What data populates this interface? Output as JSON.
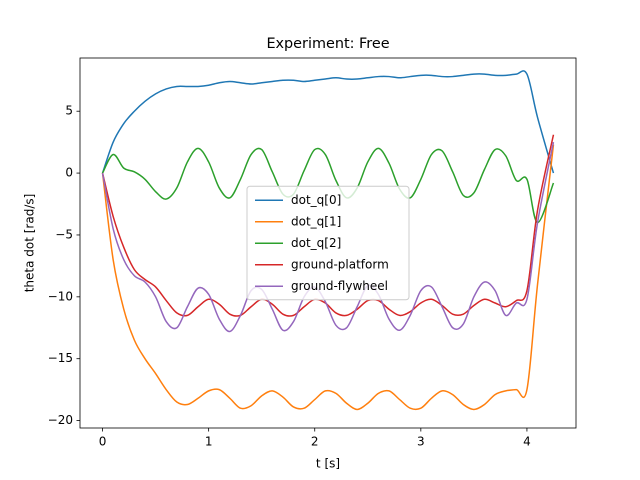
{
  "chart_data": {
    "type": "line",
    "title": "Experiment: Free",
    "xlabel": "t [s]",
    "ylabel": "theta dot [rad/s]",
    "x": [
      0,
      0.1,
      0.2,
      0.3,
      0.4,
      0.5,
      0.6,
      0.7,
      0.8,
      0.9,
      1.0,
      1.1,
      1.2,
      1.3,
      1.4,
      1.5,
      1.6,
      1.7,
      1.8,
      1.9,
      2.0,
      2.1,
      2.2,
      2.3,
      2.4,
      2.5,
      2.6,
      2.7,
      2.8,
      2.9,
      3.0,
      3.1,
      3.2,
      3.3,
      3.4,
      3.5,
      3.6,
      3.7,
      3.8,
      3.9,
      4.0,
      4.1,
      4.25
    ],
    "series": [
      {
        "name": "dot_q[0]",
        "color": "#1f77b4",
        "values": [
          0,
          2.5,
          4.0,
          5.0,
          5.8,
          6.4,
          6.8,
          7.0,
          7.0,
          7.0,
          7.1,
          7.3,
          7.4,
          7.3,
          7.2,
          7.3,
          7.4,
          7.5,
          7.5,
          7.4,
          7.5,
          7.6,
          7.7,
          7.6,
          7.6,
          7.7,
          7.8,
          7.8,
          7.7,
          7.8,
          7.9,
          7.9,
          7.8,
          7.8,
          7.9,
          8.0,
          8.0,
          7.9,
          7.9,
          8.0,
          8.0,
          4.5,
          0
        ]
      },
      {
        "name": "dot_q[1]",
        "color": "#ff7f0e",
        "values": [
          0,
          -7,
          -11,
          -13.5,
          -15,
          -16.2,
          -17.5,
          -18.5,
          -18.7,
          -18.2,
          -17.6,
          -17.5,
          -18.2,
          -19.0,
          -18.8,
          -18.0,
          -17.6,
          -18.1,
          -18.9,
          -19.0,
          -18.3,
          -17.6,
          -17.8,
          -18.6,
          -19.1,
          -18.6,
          -17.8,
          -17.6,
          -18.3,
          -19.0,
          -19.0,
          -18.2,
          -17.6,
          -17.9,
          -18.7,
          -19.1,
          -18.7,
          -17.9,
          -17.6,
          -17.5,
          -17.5,
          -9,
          2.3
        ]
      },
      {
        "name": "dot_q[2]",
        "color": "#2ca02c",
        "values": [
          0,
          1.5,
          0.4,
          0.1,
          -0.5,
          -1.5,
          -2.1,
          -1.2,
          0.9,
          2.0,
          0.9,
          -1.2,
          -2.0,
          -0.5,
          1.5,
          1.9,
          0.1,
          -1.7,
          -1.7,
          0.2,
          1.9,
          1.5,
          -0.6,
          -2.0,
          -1.2,
          0.9,
          2.0,
          0.8,
          -1.3,
          -2.0,
          -0.5,
          1.5,
          1.8,
          0.1,
          -1.8,
          -1.6,
          0.3,
          1.9,
          1.4,
          -0.6,
          -0.5,
          -4.0,
          -0.8
        ]
      },
      {
        "name": "ground-platform",
        "color": "#d62728",
        "values": [
          0,
          -3.5,
          -6,
          -7.8,
          -8.6,
          -9.2,
          -10.3,
          -11.3,
          -11.5,
          -10.8,
          -10.2,
          -10.6,
          -11.4,
          -11.5,
          -10.8,
          -10.2,
          -10.6,
          -11.4,
          -11.5,
          -10.8,
          -10.2,
          -10.5,
          -11.3,
          -11.5,
          -11.0,
          -10.3,
          -10.3,
          -11.0,
          -11.5,
          -11.2,
          -10.5,
          -10.2,
          -10.7,
          -11.4,
          -11.4,
          -10.7,
          -10.2,
          -10.5,
          -10.8,
          -10.3,
          -9.5,
          -3,
          3.1
        ]
      },
      {
        "name": "ground-flywheel",
        "color": "#9467bd",
        "values": [
          0,
          -4.5,
          -7,
          -8.3,
          -8.8,
          -10,
          -12,
          -12.5,
          -10.8,
          -9.3,
          -9.8,
          -11.8,
          -12.8,
          -11.5,
          -9.5,
          -9.4,
          -11.0,
          -12.7,
          -12.0,
          -10.0,
          -9.2,
          -10.4,
          -12.3,
          -12.5,
          -10.8,
          -9.1,
          -9.8,
          -11.8,
          -12.7,
          -11.5,
          -9.5,
          -9.2,
          -10.8,
          -12.5,
          -12.2,
          -10.0,
          -8.8,
          -9.5,
          -11.5,
          -10.5,
          -10.2,
          -4,
          2.5
        ]
      }
    ],
    "xlim": [
      -0.2125,
      4.4625
    ],
    "xticks": [
      0,
      1,
      2,
      3,
      4
    ],
    "ylim": [
      -20.6,
      9.3
    ],
    "yticks": [
      {
        "value": -20,
        "label": "−20"
      },
      {
        "value": -15,
        "label": "−15"
      },
      {
        "value": -10,
        "label": "−10"
      },
      {
        "value": -5,
        "label": "−5"
      },
      0,
      5
    ],
    "legend": "center"
  }
}
